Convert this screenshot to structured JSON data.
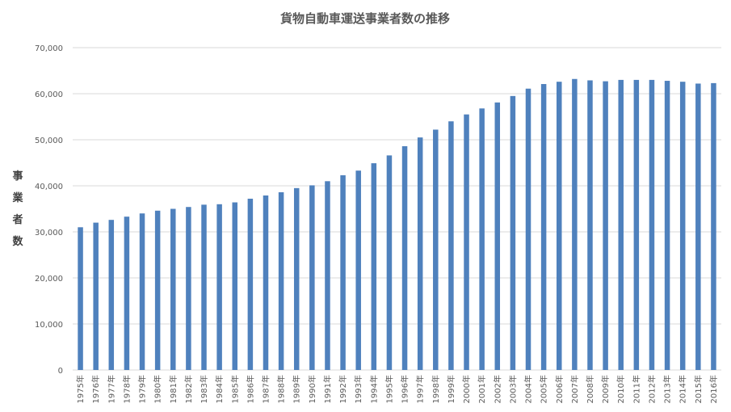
{
  "chart_data": {
    "type": "bar",
    "title": "貨物自動車運送事業者数の推移",
    "ylabel": "事業者数",
    "xlabel": "",
    "ylim": [
      0,
      70000
    ],
    "yticks": [
      "0",
      "10,000",
      "20,000",
      "30,000",
      "40,000",
      "50,000",
      "60,000",
      "70,000"
    ],
    "grid": true,
    "bar_color": "#4f81bd",
    "categories": [
      "1975年",
      "1976年",
      "1977年",
      "1978年",
      "1979年",
      "1980年",
      "1981年",
      "1982年",
      "1983年",
      "1984年",
      "1985年",
      "1986年",
      "1987年",
      "1988年",
      "1989年",
      "1990年",
      "1991年",
      "1992年",
      "1993年",
      "1994年",
      "1995年",
      "1996年",
      "1997年",
      "1998年",
      "1999年",
      "2000年",
      "2001年",
      "2002年",
      "2003年",
      "2004年",
      "2005年",
      "2006年",
      "2007年",
      "2008年",
      "2009年",
      "2010年",
      "2011年",
      "2012年",
      "2013年",
      "2014年",
      "2015年",
      "2016年"
    ],
    "values": [
      31000,
      32000,
      32600,
      33300,
      34000,
      34600,
      35000,
      35400,
      35900,
      36000,
      36400,
      37200,
      37900,
      38600,
      39500,
      40100,
      41000,
      42300,
      43300,
      44900,
      46600,
      48600,
      50500,
      52200,
      54000,
      55500,
      56800,
      58100,
      59500,
      61100,
      62100,
      62600,
      63200,
      62900,
      62700,
      63000,
      63000,
      63000,
      62800,
      62600,
      62200,
      62300
    ]
  }
}
